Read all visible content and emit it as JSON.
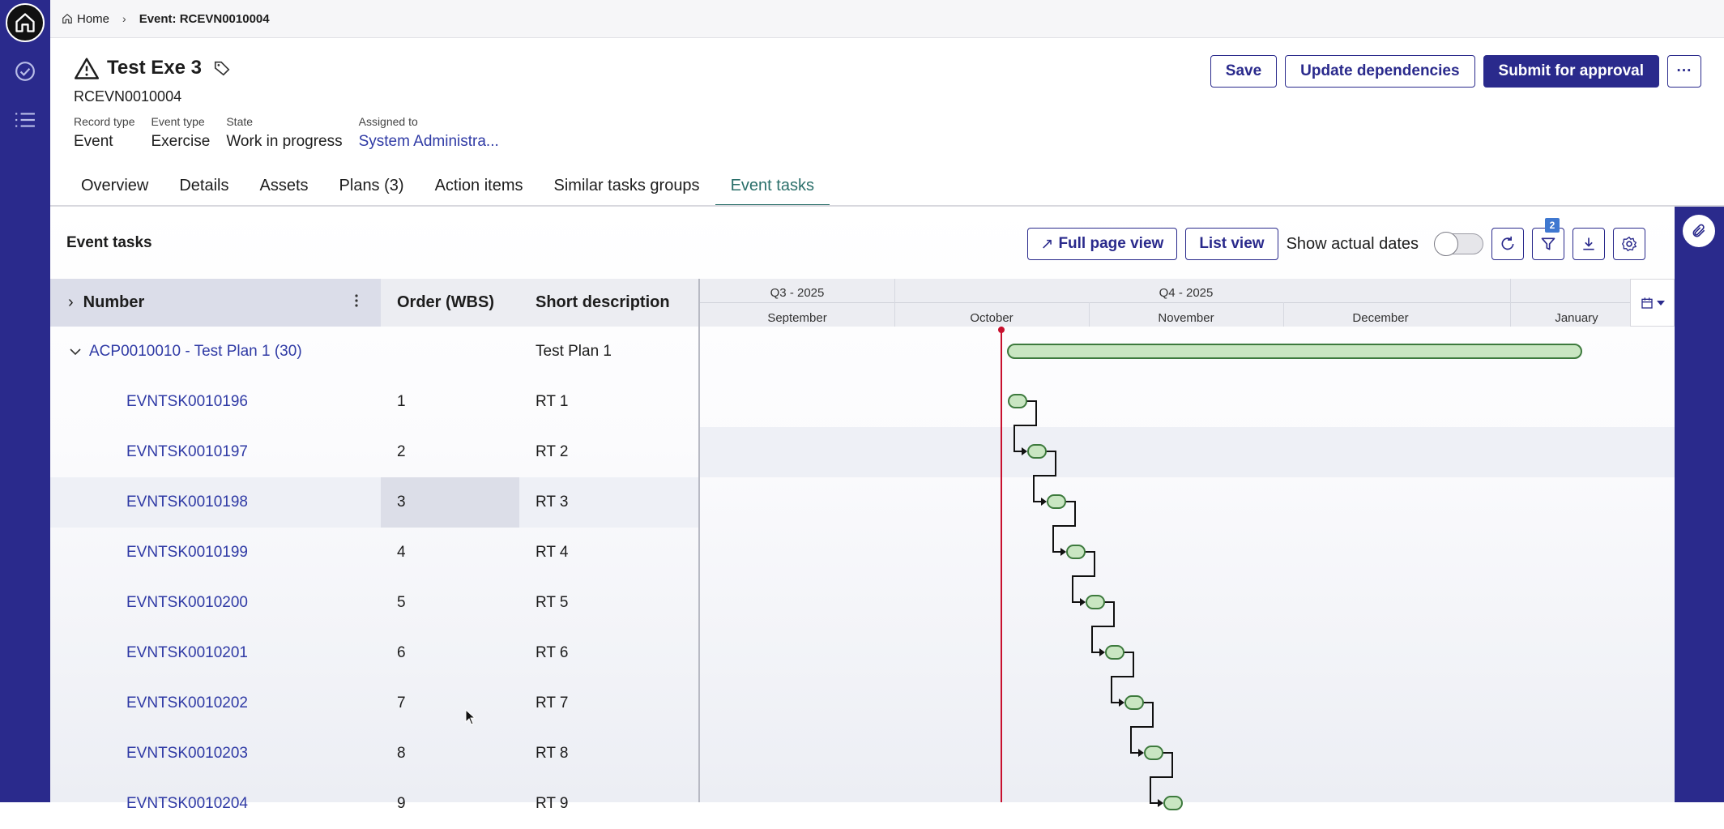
{
  "breadcrumb": {
    "home": "Home",
    "current": "Event: RCEVN0010004"
  },
  "record": {
    "title": "Test Exe 3",
    "number": "RCEVN0010004",
    "fields": [
      {
        "label": "Record type",
        "value": "Event"
      },
      {
        "label": "Event type",
        "value": "Exercise"
      },
      {
        "label": "State",
        "value": "Work in progress"
      },
      {
        "label": "Assigned to",
        "value": "System Administra..."
      }
    ]
  },
  "actions": {
    "save": "Save",
    "update": "Update dependencies",
    "submit": "Submit for approval",
    "more": "···"
  },
  "tabs": [
    "Overview",
    "Details",
    "Assets",
    "Plans (3)",
    "Action items",
    "Similar tasks groups",
    "Event tasks"
  ],
  "panel": {
    "title": "Event tasks",
    "full_page": "Full page view",
    "list_view": "List view",
    "show_actual": "Show actual dates",
    "show_actual_on": false,
    "filter_count": "2"
  },
  "grid": {
    "headers": {
      "number": "Number",
      "wbs": "Order (WBS)",
      "desc": "Short description"
    },
    "plan": {
      "number": "ACP0010010 - Test Plan 1 (30)",
      "desc": "Test Plan 1"
    },
    "rows": [
      {
        "number": "EVNTSK0010196",
        "wbs": "1",
        "desc": "RT 1"
      },
      {
        "number": "EVNTSK0010197",
        "wbs": "2",
        "desc": "RT 2"
      },
      {
        "number": "EVNTSK0010198",
        "wbs": "3",
        "desc": "RT 3"
      },
      {
        "number": "EVNTSK0010199",
        "wbs": "4",
        "desc": "RT 4"
      },
      {
        "number": "EVNTSK0010200",
        "wbs": "5",
        "desc": "RT 5"
      },
      {
        "number": "EVNTSK0010201",
        "wbs": "6",
        "desc": "RT 6"
      },
      {
        "number": "EVNTSK0010202",
        "wbs": "7",
        "desc": "RT 7"
      },
      {
        "number": "EVNTSK0010203",
        "wbs": "8",
        "desc": "RT 8"
      },
      {
        "number": "EVNTSK0010204",
        "wbs": "9",
        "desc": "RT 9"
      }
    ]
  },
  "gantt": {
    "quarters": [
      "Q3 - 2025",
      "Q4 - 2025"
    ],
    "months": [
      "September",
      "October",
      "November",
      "December",
      "January"
    ]
  },
  "colors": {
    "brand": "#2a2a8c",
    "link": "#2f3aa5",
    "active_tab": "#2a6f6a",
    "today_line": "#c8102e",
    "bar_fill": "#c9e6c2",
    "bar_stroke": "#3d7a3d"
  }
}
